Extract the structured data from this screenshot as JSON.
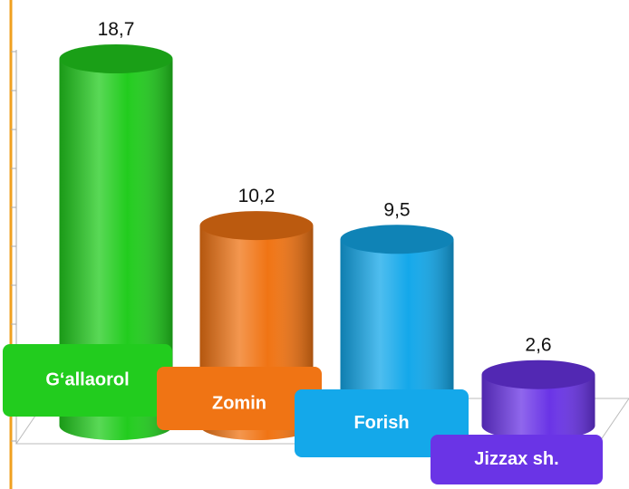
{
  "chart_data": {
    "type": "bar3d",
    "categories": [
      "G‘allaorol",
      "Zomin",
      "Forish",
      "Jizzax sh."
    ],
    "values": [
      18.7,
      10.2,
      9.5,
      2.6
    ],
    "value_labels": [
      "18,7",
      "10,2",
      "9,5",
      "2,6"
    ],
    "colors": [
      "#22cc1e",
      "#f07414",
      "#14a8ea",
      "#6a34e6"
    ],
    "ylim": [
      0,
      20
    ],
    "yticks": [
      0,
      2,
      4,
      6,
      8,
      10,
      12,
      14,
      16,
      18,
      20
    ]
  }
}
